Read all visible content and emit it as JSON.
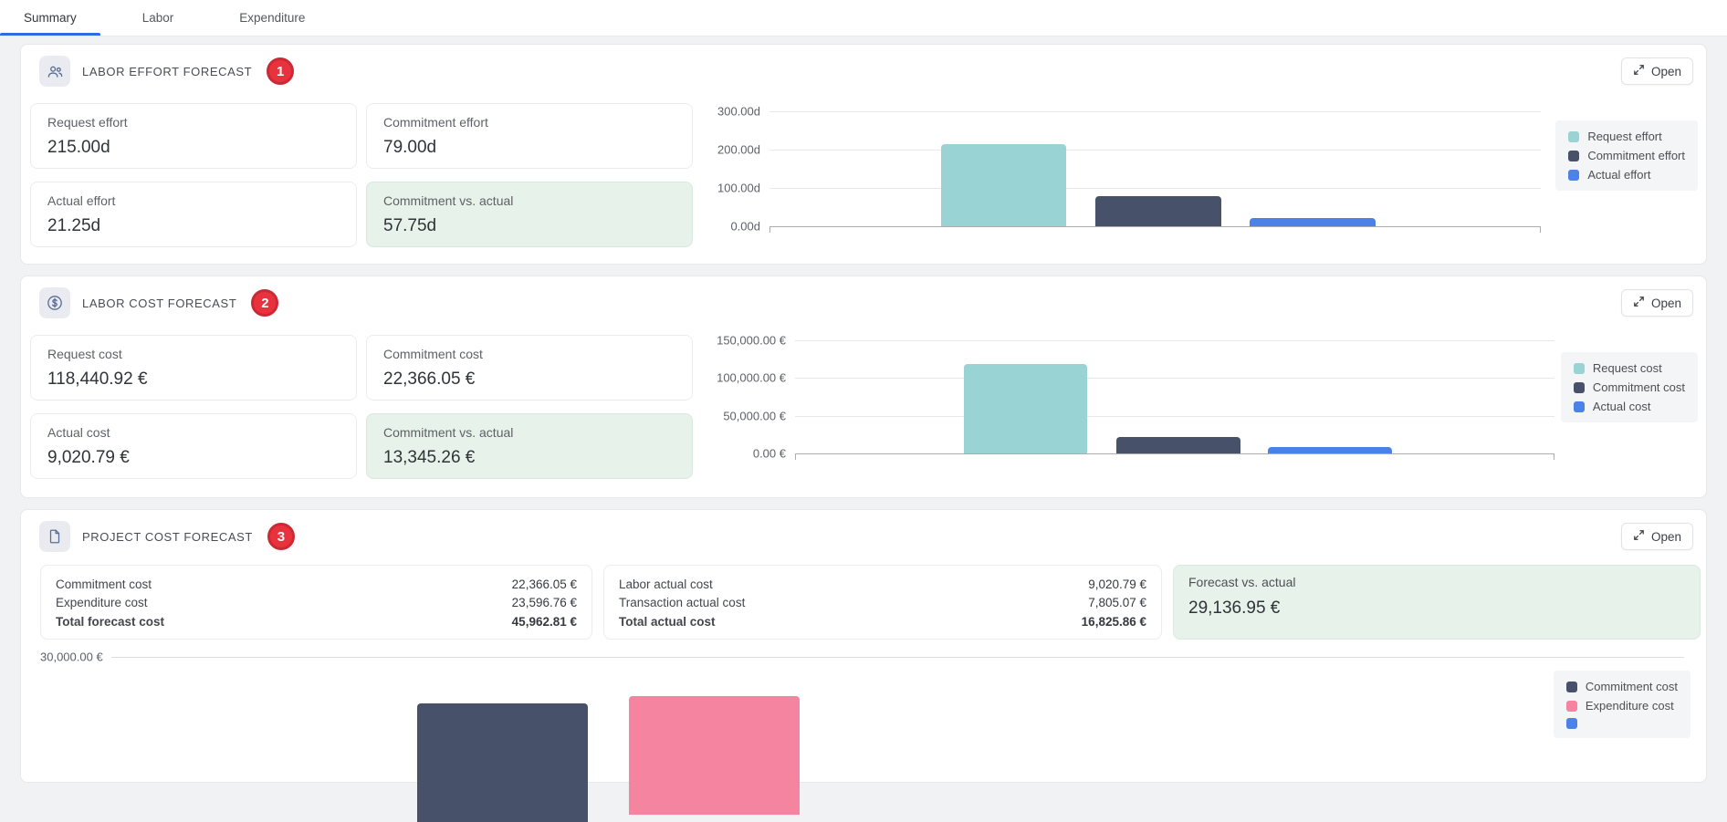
{
  "tabs": {
    "items": [
      {
        "label": "Summary"
      },
      {
        "label": "Labor"
      },
      {
        "label": "Expenditure"
      }
    ],
    "active_index": 0
  },
  "actions": {
    "open": "Open"
  },
  "sections": {
    "labor_effort": {
      "title": "LABOR EFFORT FORECAST",
      "badge": "1",
      "metrics": [
        {
          "label": "Request effort",
          "value": "215.00d"
        },
        {
          "label": "Commitment effort",
          "value": "79.00d"
        },
        {
          "label": "Actual effort",
          "value": "21.25d"
        },
        {
          "label": "Commitment vs. actual",
          "value": "57.75d"
        }
      ]
    },
    "labor_cost": {
      "title": "LABOR COST FORECAST",
      "badge": "2",
      "metrics": [
        {
          "label": "Request cost",
          "value": "118,440.92 €"
        },
        {
          "label": "Commitment cost",
          "value": "22,366.05 €"
        },
        {
          "label": "Actual cost",
          "value": "9,020.79 €"
        },
        {
          "label": "Commitment vs. actual",
          "value": "13,345.26 €"
        }
      ]
    },
    "project_cost": {
      "title": "PROJECT COST FORECAST",
      "badge": "3",
      "forecast_table": [
        {
          "label": "Commitment cost",
          "value": "22,366.05 €"
        },
        {
          "label": "Expenditure cost",
          "value": "23,596.76 €"
        },
        {
          "label": "Total forecast cost",
          "value": "45,962.81 €"
        }
      ],
      "actual_table": [
        {
          "label": "Labor actual cost",
          "value": "9,020.79 €"
        },
        {
          "label": "Transaction actual cost",
          "value": "7,805.07 €"
        },
        {
          "label": "Total actual cost",
          "value": "16,825.86 €"
        }
      ],
      "variance": {
        "label": "Forecast vs. actual",
        "value": "29,136.95 €"
      }
    }
  },
  "colors": {
    "accent_blue": "#2e6be5",
    "badge_red": "#e8333e",
    "green_highlight": "#e7f2ea"
  },
  "chart_data": [
    {
      "type": "bar",
      "title": "Labor effort forecast",
      "categories": [
        "Request effort",
        "Commitment effort",
        "Actual effort"
      ],
      "values": [
        215.0,
        79.0,
        21.25
      ],
      "unit": "d",
      "y_ticks": [
        "300.00d",
        "200.00d",
        "100.00d",
        "0.00d"
      ],
      "ylim": [
        0,
        300
      ],
      "grid": true,
      "legend": [
        "Request effort",
        "Commitment effort",
        "Actual effort"
      ],
      "legend_position": "right",
      "colors": [
        "#99d3d3",
        "#475169",
        "#4c81e8"
      ]
    },
    {
      "type": "bar",
      "title": "Labor cost forecast",
      "categories": [
        "Request cost",
        "Commitment cost",
        "Actual cost"
      ],
      "values": [
        118440.92,
        22366.05,
        9020.79
      ],
      "unit": "€",
      "y_ticks": [
        "150,000.00 €",
        "100,000.00 €",
        "50,000.00 €",
        "0.00 €"
      ],
      "ylim": [
        0,
        150000
      ],
      "grid": true,
      "legend": [
        "Request cost",
        "Commitment cost",
        "Actual cost"
      ],
      "legend_position": "right",
      "colors": [
        "#99d3d3",
        "#475169",
        "#4c81e8"
      ]
    },
    {
      "type": "bar",
      "title": "Project cost forecast",
      "categories": [
        "Commitment cost",
        "Expenditure cost"
      ],
      "values": [
        22366.05,
        23596.76
      ],
      "unit": "€",
      "y_ticks": [
        "30,000.00 €"
      ],
      "ylim": [
        0,
        30000
      ],
      "grid": true,
      "legend": [
        "Commitment cost",
        "Expenditure cost"
      ],
      "legend_position": "right",
      "colors": [
        "#475169",
        "#f4849f"
      ],
      "extra_swatch_color": "#4c81e8",
      "truncated_bottom": true
    }
  ]
}
